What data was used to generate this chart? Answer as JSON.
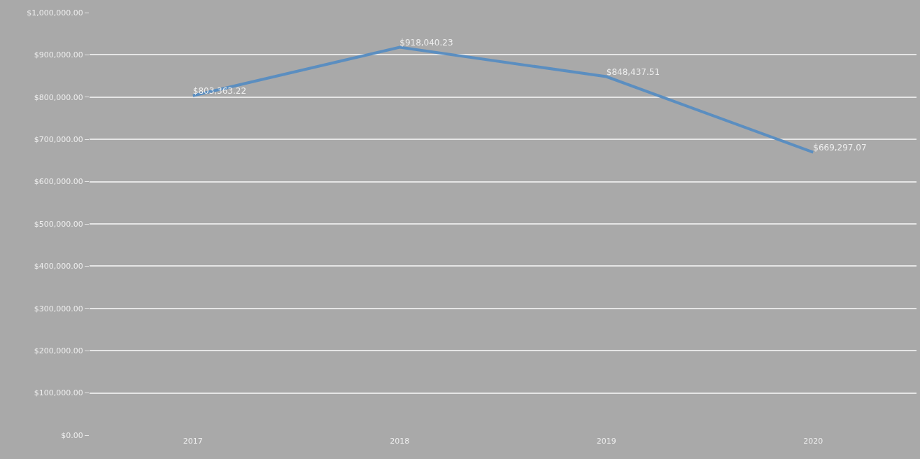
{
  "chart_data": {
    "type": "line",
    "categories": [
      "2017",
      "2018",
      "2019",
      "2020"
    ],
    "series": [
      {
        "color": "#5b8ec0",
        "values": [
          803363.22,
          918040.23,
          848437.51,
          669297.07
        ]
      }
    ],
    "value_labels": [
      "$803,363.22",
      "$918,040.23",
      "$848,437.51",
      "$669,297.07"
    ],
    "ylim": [
      0,
      1000000
    ],
    "yticks": [
      {
        "value": 0,
        "label": "$0.00"
      },
      {
        "value": 100000,
        "label": "$100,000.00"
      },
      {
        "value": 200000,
        "label": "$200,000.00"
      },
      {
        "value": 300000,
        "label": "$300,000.00"
      },
      {
        "value": 400000,
        "label": "$400,000.00"
      },
      {
        "value": 500000,
        "label": "$500,000.00"
      },
      {
        "value": 600000,
        "label": "$600,000.00"
      },
      {
        "value": 700000,
        "label": "$700,000.00"
      },
      {
        "value": 800000,
        "label": "$800,000.00"
      },
      {
        "value": 900000,
        "label": "$900,000.00"
      },
      {
        "value": 1000000,
        "label": "$1,000,000.00"
      }
    ],
    "grid": "y",
    "marker": "none",
    "line_style": "solid"
  }
}
